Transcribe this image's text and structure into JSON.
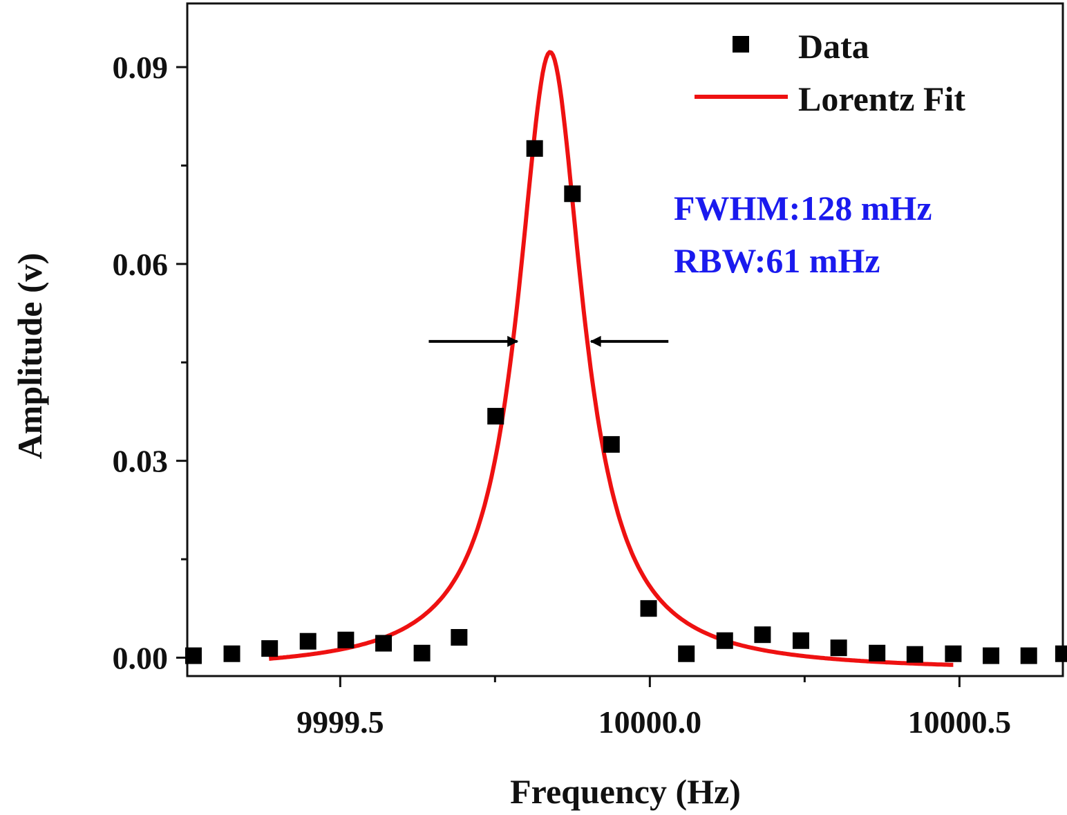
{
  "chart_data": {
    "type": "scatter",
    "xlabel": "Frequency (Hz)",
    "ylabel": "Amplitude (v)",
    "xlim": [
      9999.253,
      10000.667
    ],
    "ylim": [
      -0.0028,
      0.0997
    ],
    "xticks": [
      {
        "v": 9999.5,
        "label": "9999.5"
      },
      {
        "v": 10000.0,
        "label": "10000.0"
      },
      {
        "v": 10000.5,
        "label": "10000.5"
      }
    ],
    "xminor": [
      9999.75,
      10000.25
    ],
    "yticks": [
      {
        "v": 0.0,
        "label": "0.00"
      },
      {
        "v": 0.03,
        "label": "0.03"
      },
      {
        "v": 0.06,
        "label": "0.06"
      },
      {
        "v": 0.09,
        "label": "0.09"
      }
    ],
    "yminor": [
      0.015,
      0.045,
      0.075
    ],
    "grid": false,
    "legend_position": "top-right",
    "series": [
      {
        "name": "Data",
        "kind": "scatter",
        "marker": "square",
        "color": "#000000",
        "x": [
          9999.263,
          9999.325,
          9999.386,
          9999.448,
          9999.509,
          9999.57,
          9999.632,
          9999.692,
          9999.751,
          9999.814,
          9999.875,
          9999.938,
          9999.998,
          10000.059,
          10000.121,
          10000.182,
          10000.244,
          10000.305,
          10000.367,
          10000.428,
          10000.49,
          10000.551,
          10000.612,
          10000.668
        ],
        "y": [
          0.0003,
          0.0006,
          0.0014,
          0.0025,
          0.0027,
          0.0022,
          0.0007,
          0.0031,
          0.0368,
          0.0776,
          0.0707,
          0.0325,
          0.0075,
          0.0006,
          0.0026,
          0.0035,
          0.0026,
          0.0015,
          0.0007,
          0.0005,
          0.0006,
          0.0003,
          0.0003,
          0.0006
        ]
      },
      {
        "name": "Lorentz Fit",
        "kind": "line",
        "color": "#ee1111",
        "model": "lorentz",
        "xc": 9999.839,
        "fwhm": 0.128,
        "y0": -0.002,
        "peak": 0.0923,
        "x_range": [
          9999.385,
          10000.49
        ]
      }
    ],
    "annotations": {
      "fwhm_text": "FWHM:128 mHz",
      "rbw_text": "RBW:61 mHz",
      "text_color": "#1a1aee",
      "arrows": [
        {
          "from": [
            9999.643,
            0.0482
          ],
          "to": [
            9999.786,
            0.0482
          ]
        },
        {
          "from": [
            10000.03,
            0.0482
          ],
          "to": [
            9999.905,
            0.0482
          ]
        }
      ]
    }
  }
}
